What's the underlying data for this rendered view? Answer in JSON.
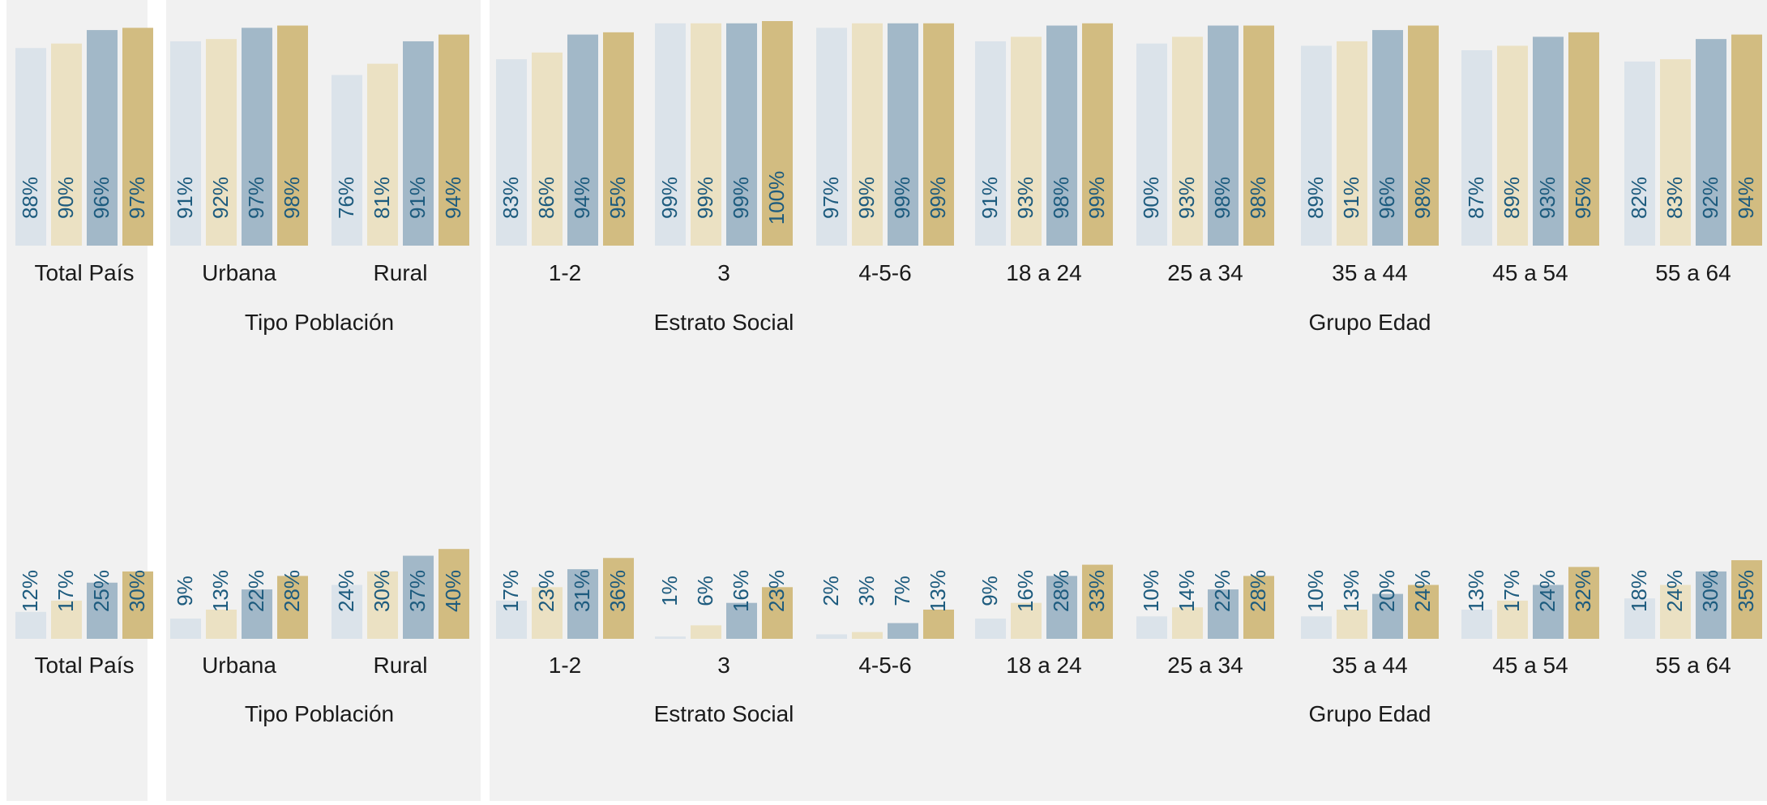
{
  "colors": {
    "panel_bg": "#f1f1f1",
    "page_bg": "#ffffff",
    "series": [
      "#dbe3ea",
      "#ebe1c3",
      "#a2b8c8",
      "#d2bc81"
    ],
    "value_text": "#1d5b7e",
    "label_text": "#1a1a1a"
  },
  "groups": [
    {
      "label": "",
      "categories": [
        "Total País"
      ]
    },
    {
      "label": "Tipo Población",
      "categories": [
        "Urbana",
        "Rural"
      ]
    },
    {
      "label": "Estrato Social",
      "categories": [
        "1-2",
        "3",
        "4-5-6"
      ]
    },
    {
      "label": "Grupo Edad",
      "categories": [
        "18 a 24",
        "25 a 34",
        "35 a 44",
        "45 a 54",
        "55 a 64"
      ]
    }
  ],
  "chart_data": [
    {
      "type": "bar",
      "categories": [
        "Total País",
        "Urbana",
        "Rural",
        "1-2",
        "3",
        "4-5-6",
        "18 a 24",
        "25 a 34",
        "35 a 44",
        "45 a 54",
        "55 a 64"
      ],
      "series": [
        {
          "values": [
            88,
            91,
            76,
            83,
            99,
            97,
            91,
            90,
            89,
            87,
            82
          ]
        },
        {
          "values": [
            90,
            92,
            81,
            86,
            99,
            99,
            93,
            93,
            91,
            89,
            83
          ]
        },
        {
          "values": [
            96,
            97,
            91,
            94,
            99,
            99,
            98,
            98,
            96,
            93,
            92
          ]
        },
        {
          "values": [
            97,
            98,
            94,
            95,
            100,
            99,
            99,
            98,
            98,
            95,
            94
          ]
        }
      ],
      "unit": "%",
      "ylim": [
        0,
        100
      ],
      "grid": false,
      "legend": "none"
    },
    {
      "type": "bar",
      "categories": [
        "Total País",
        "Urbana",
        "Rural",
        "1-2",
        "3",
        "4-5-6",
        "18 a 24",
        "25 a 34",
        "35 a 44",
        "45 a 54",
        "55 a 64"
      ],
      "series": [
        {
          "values": [
            12,
            9,
            24,
            17,
            1,
            2,
            9,
            10,
            10,
            13,
            18
          ]
        },
        {
          "values": [
            17,
            13,
            30,
            23,
            6,
            3,
            16,
            14,
            13,
            17,
            24
          ]
        },
        {
          "values": [
            25,
            22,
            37,
            31,
            16,
            7,
            28,
            22,
            20,
            24,
            30
          ]
        },
        {
          "values": [
            30,
            28,
            40,
            36,
            23,
            13,
            33,
            28,
            24,
            32,
            35
          ]
        }
      ],
      "unit": "%",
      "ylim": [
        0,
        100
      ],
      "grid": false,
      "legend": "none"
    }
  ]
}
